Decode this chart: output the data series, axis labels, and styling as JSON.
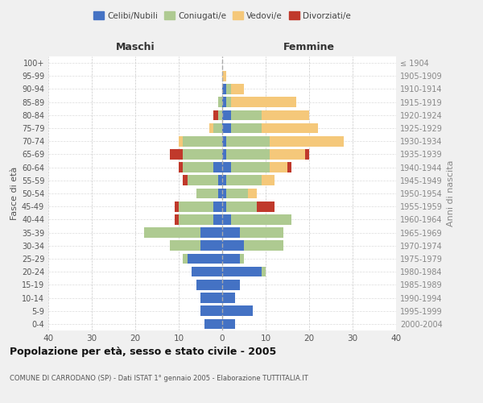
{
  "age_groups": [
    "0-4",
    "5-9",
    "10-14",
    "15-19",
    "20-24",
    "25-29",
    "30-34",
    "35-39",
    "40-44",
    "45-49",
    "50-54",
    "55-59",
    "60-64",
    "65-69",
    "70-74",
    "75-79",
    "80-84",
    "85-89",
    "90-94",
    "95-99",
    "100+"
  ],
  "birth_years": [
    "2000-2004",
    "1995-1999",
    "1990-1994",
    "1985-1989",
    "1980-1984",
    "1975-1979",
    "1970-1974",
    "1965-1969",
    "1960-1964",
    "1955-1959",
    "1950-1954",
    "1945-1949",
    "1940-1944",
    "1935-1939",
    "1930-1934",
    "1925-1929",
    "1920-1924",
    "1915-1919",
    "1910-1914",
    "1905-1909",
    "≤ 1904"
  ],
  "male": {
    "celibi": [
      4,
      5,
      5,
      6,
      7,
      8,
      5,
      5,
      2,
      2,
      1,
      1,
      2,
      0,
      0,
      0,
      0,
      0,
      0,
      0,
      0
    ],
    "coniugati": [
      0,
      0,
      0,
      0,
      0,
      1,
      7,
      13,
      8,
      8,
      5,
      7,
      7,
      9,
      9,
      2,
      1,
      1,
      0,
      0,
      0
    ],
    "vedovi": [
      0,
      0,
      0,
      0,
      0,
      0,
      0,
      0,
      0,
      0,
      0,
      0,
      0,
      0,
      1,
      1,
      0,
      0,
      0,
      0,
      0
    ],
    "divorziati": [
      0,
      0,
      0,
      0,
      0,
      0,
      0,
      0,
      1,
      1,
      0,
      1,
      1,
      3,
      0,
      0,
      1,
      0,
      0,
      0,
      0
    ]
  },
  "female": {
    "nubili": [
      3,
      7,
      3,
      4,
      9,
      4,
      5,
      4,
      2,
      1,
      1,
      1,
      2,
      1,
      1,
      2,
      2,
      1,
      1,
      0,
      0
    ],
    "coniugate": [
      0,
      0,
      0,
      0,
      1,
      1,
      9,
      10,
      14,
      7,
      5,
      8,
      9,
      10,
      10,
      7,
      7,
      1,
      1,
      0,
      0
    ],
    "vedove": [
      0,
      0,
      0,
      0,
      0,
      0,
      0,
      0,
      0,
      0,
      2,
      3,
      4,
      8,
      17,
      13,
      11,
      15,
      3,
      1,
      0
    ],
    "divorziate": [
      0,
      0,
      0,
      0,
      0,
      0,
      0,
      0,
      0,
      4,
      0,
      0,
      1,
      1,
      0,
      0,
      0,
      0,
      0,
      0,
      0
    ]
  },
  "colors": {
    "celibi": "#4472C4",
    "coniugati": "#AECA91",
    "vedovi": "#F5C87A",
    "divorziati": "#C0392B"
  },
  "title": "Popolazione per età, sesso e stato civile - 2005",
  "subtitle": "COMUNE DI CARRODANO (SP) - Dati ISTAT 1° gennaio 2005 - Elaborazione TUTTITALIA.IT",
  "xlabel_left": "Maschi",
  "xlabel_right": "Femmine",
  "ylabel_left": "Fasce di età",
  "ylabel_right": "Anni di nascita",
  "xlim": 40,
  "bg_color": "#f0f0f0",
  "plot_bg_color": "#ffffff",
  "legend_labels": [
    "Celibi/Nubili",
    "Coniugati/e",
    "Vedovi/e",
    "Divorziati/e"
  ]
}
